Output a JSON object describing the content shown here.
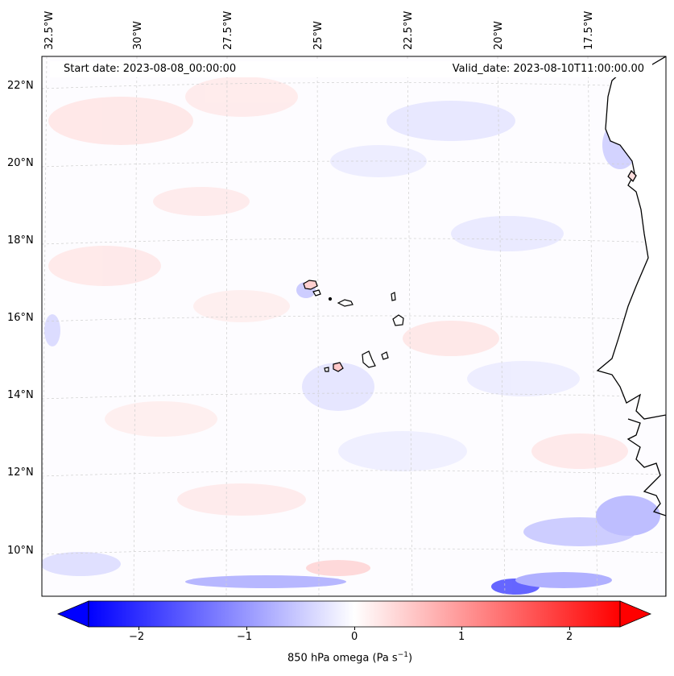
{
  "header": {
    "start_date": "Start date: 2023-08-08_00:00:00",
    "valid_date": "Valid_date: 2023-08-10T11:00:00.00"
  },
  "longitude_labels": [
    "32.5°W",
    "30°W",
    "27.5°W",
    "25°W",
    "22.5°W",
    "20°W",
    "17.5°W"
  ],
  "latitude_labels": [
    "22°N",
    "20°N",
    "18°N",
    "16°N",
    "14°N",
    "12°N",
    "10°N"
  ],
  "colorbar": {
    "ticks": [
      "−2",
      "−1",
      "0",
      "1",
      "2"
    ],
    "label": "850 hPa omega (Pa s",
    "label_sup": "−1",
    "label_end": ")",
    "min_color": "#0000ff",
    "mid_color": "#ffffff",
    "max_color": "#ff0000"
  },
  "map": {
    "land_color": "#ffffff",
    "coast_color": "#000000",
    "grid_color": "#cfcfcf"
  }
}
